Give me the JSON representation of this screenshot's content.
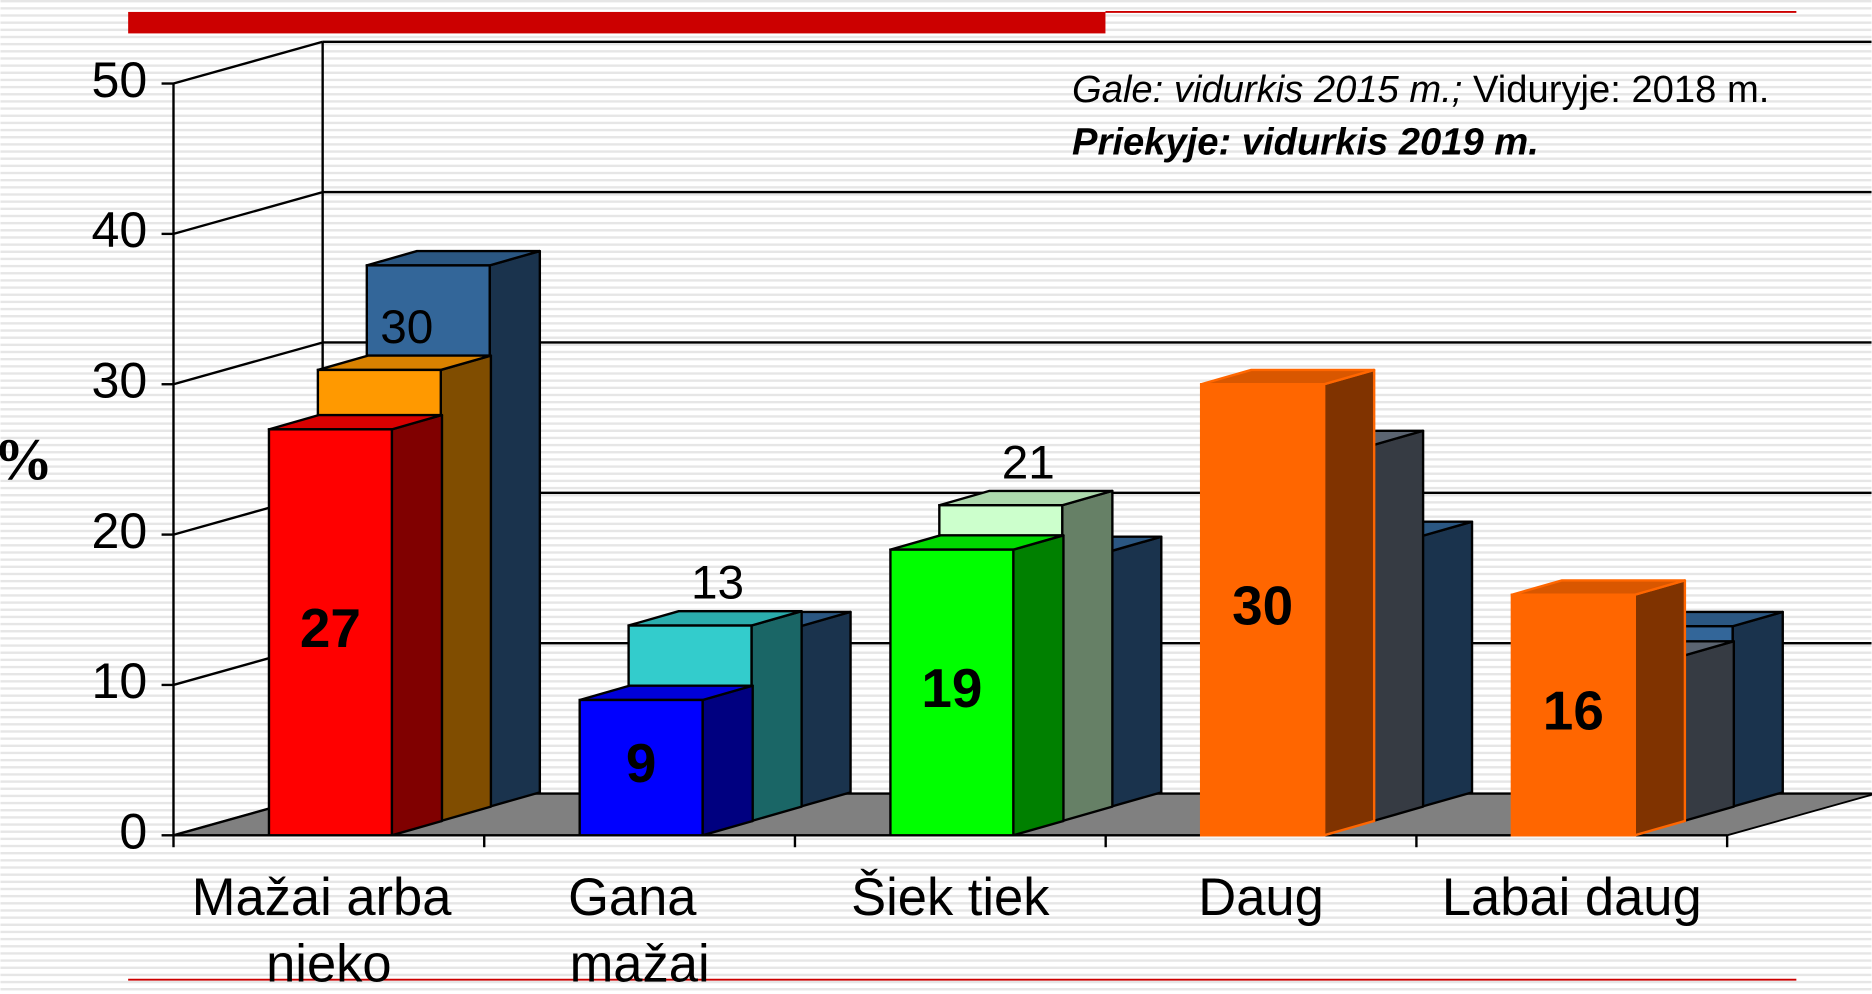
{
  "chart_data": {
    "type": "bar3d",
    "y_label": "%",
    "annotations": [
      "Gale: vidurkis 2015 m.;",
      "Viduryje: 2018 m.",
      "Priekyje: vidurkis 2019 m."
    ],
    "categories": [
      "Mažai arba nieko",
      "Gana mažai",
      "Šiek tiek",
      "Daug",
      "Labai daug"
    ],
    "series": [
      {
        "colors": [
          "#336699",
          "#336699",
          "#336699",
          "#336699",
          "#336699"
        ],
        "values": [
          36,
          12,
          17,
          18,
          12
        ]
      },
      {
        "colors": [
          "#ff9900",
          "#33cccc",
          "#ccffcc",
          "#6b7685",
          "#6b7685"
        ],
        "values": [
          30,
          13,
          21,
          25,
          11
        ]
      },
      {
        "colors": [
          "#ff0000",
          "#0000ff",
          "#00ff00",
          "#ff6600",
          "#ff6600"
        ],
        "values": [
          27,
          9,
          19,
          30,
          16
        ]
      }
    ],
    "ylim": [
      0,
      50
    ],
    "yticks": [
      0,
      10,
      20,
      30,
      40,
      50
    ],
    "grid": true
  }
}
